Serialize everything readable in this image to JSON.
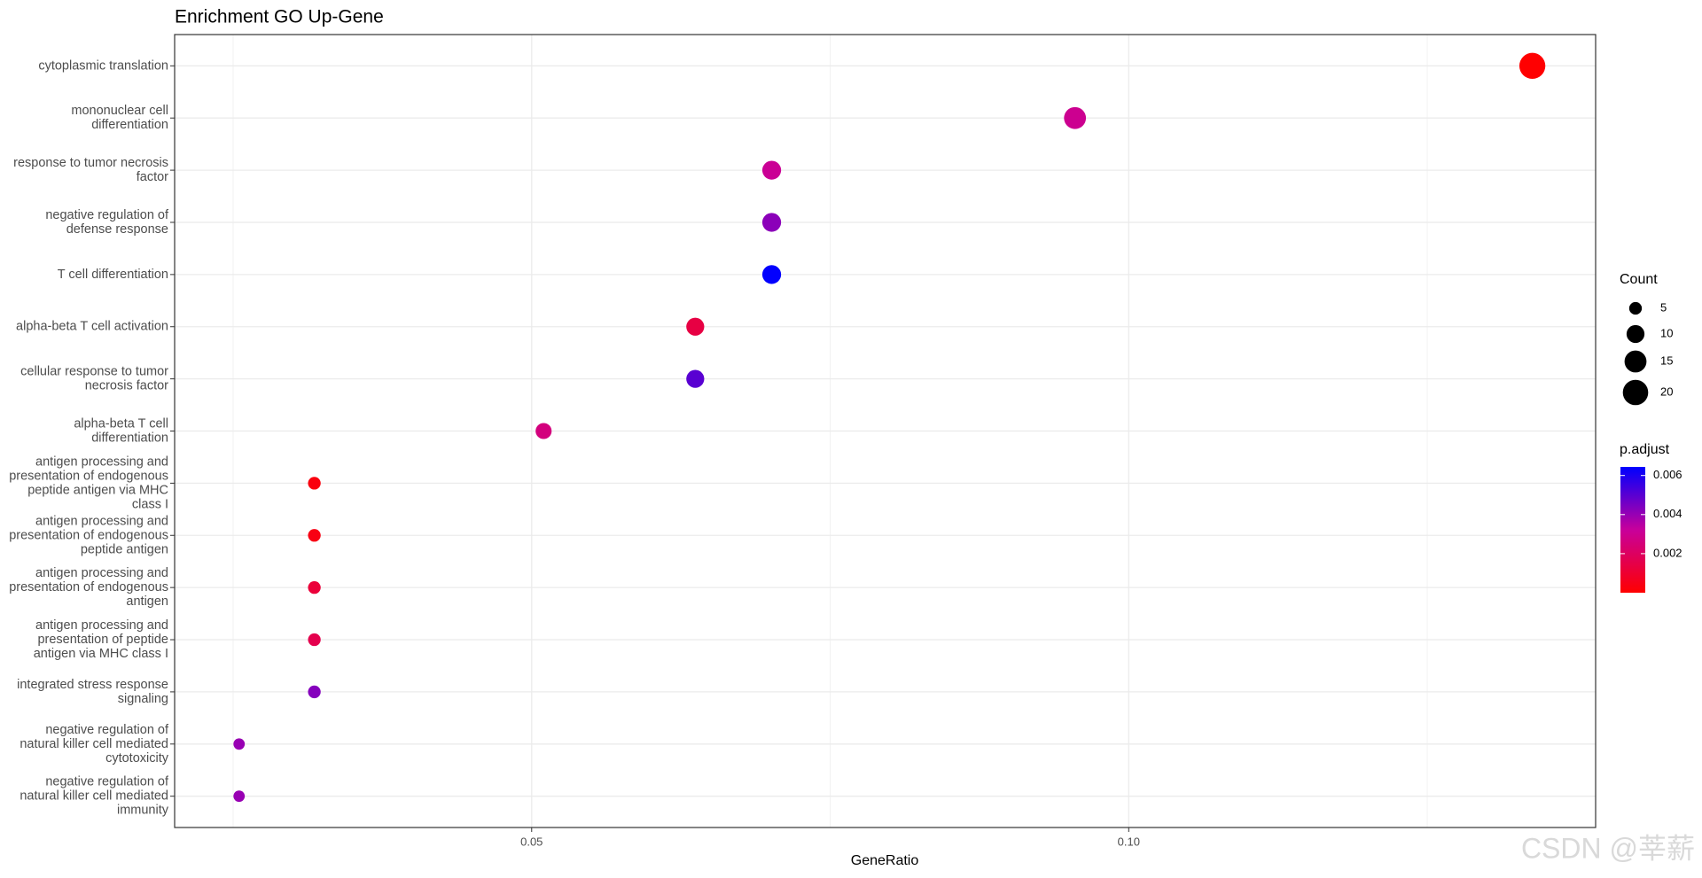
{
  "chart_data": {
    "type": "dot",
    "title": "Enrichment GO Up-Gene",
    "x_label": "GeneRatio",
    "categories": [
      "cytoplasmic translation",
      "mononuclear cell\ndifferentiation",
      "response to tumor necrosis\nfactor",
      "negative regulation of\ndefense response",
      "T cell differentiation",
      "alpha-beta T cell activation",
      "cellular response to tumor\nnecrosis factor",
      "alpha-beta T cell\ndifferentiation",
      "antigen processing and\npresentation of endogenous\npeptide antigen via MHC\nclass I",
      "antigen processing and\npresentation of endogenous\npeptide antigen",
      "antigen processing and\npresentation of endogenous\nantigen",
      "antigen processing and\npresentation of peptide\nantigen via MHC class I",
      "integrated stress response\nsignaling",
      "negative regulation of\nnatural killer cell mediated\ncytotoxicity",
      "negative regulation of\nnatural killer cell mediated\nimmunity"
    ],
    "values": [
      0.1338,
      0.0955,
      0.0701,
      0.0701,
      0.0701,
      0.0637,
      0.0637,
      0.051,
      0.0318,
      0.0318,
      0.0318,
      0.0318,
      0.0318,
      0.0255,
      0.0255
    ],
    "counts": [
      21,
      15,
      11,
      11,
      11,
      10,
      10,
      8,
      5,
      5,
      5,
      5,
      5,
      4,
      4
    ],
    "p_adjust": [
      2e-05,
      0.003,
      0.0031,
      0.0042,
      0.0064,
      0.0014,
      0.005,
      0.0026,
      0.0003,
      0.0004,
      0.0012,
      0.0016,
      0.0043,
      0.004,
      0.004
    ],
    "xlim": [
      0.0201,
      0.1391
    ],
    "xticks": [
      0.05,
      {
        "value": 0.1,
        "label": "0.10"
      }
    ],
    "grid": true,
    "size_legend": {
      "title": "Count",
      "values": [
        5,
        10,
        15,
        20
      ]
    },
    "color_legend": {
      "title": "p.adjust",
      "lim": [
        0.0,
        0.00644
      ],
      "ticks": [
        0.002,
        0.004,
        0.006
      ],
      "low": "#FF0000",
      "high": "#0000FF"
    },
    "watermark": "CSDN @莘薪"
  }
}
